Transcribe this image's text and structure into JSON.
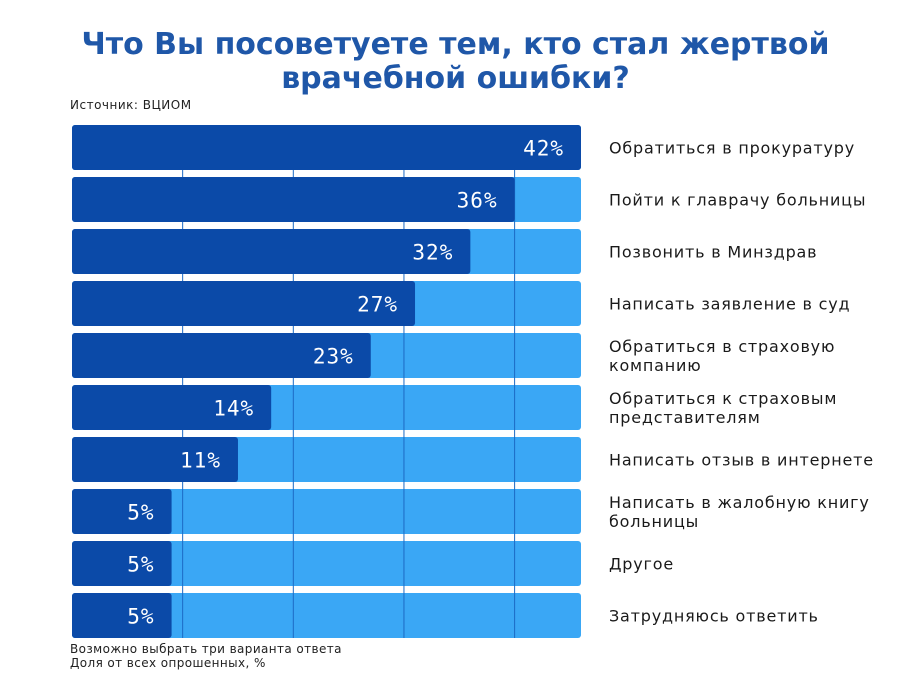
{
  "title_line1": "Что Вы посоветуете тем, кто стал жертвой",
  "title_line2": "врачебной ошибки?",
  "source": "Источник: ВЦИОМ",
  "footnote_line1": "Возможно выбрать три варианта ответа",
  "footnote_line2": "Доля от всех опрошенных, %",
  "colors": {
    "title": "#1f57a8",
    "bar_value": "#0b4aa8",
    "bar_track": "#3aa7f5",
    "gridline": "#1c6ac4",
    "value_text": "#ffffff"
  },
  "chart_data": {
    "type": "bar",
    "orientation": "horizontal",
    "categories": [
      [
        "Обратиться в прокуратуру"
      ],
      [
        "Пойти к главрачу больницы"
      ],
      [
        "Позвонить в Минздрав"
      ],
      [
        "Написать заявление в суд"
      ],
      [
        "Обратиться в страховую",
        "компанию"
      ],
      [
        "Обратиться к страховым",
        "представителям"
      ],
      [
        "Написать отзыв в интернете"
      ],
      [
        "Написать в жалобную книгу",
        "больницы"
      ],
      [
        "Другое"
      ],
      [
        "Затрудняюсь ответить"
      ]
    ],
    "values": [
      42,
      36,
      32,
      27,
      23,
      14,
      11,
      5,
      5,
      5
    ],
    "value_labels": [
      "42%",
      "36%",
      "32%",
      "27%",
      "23%",
      "14%",
      "11%",
      "5%",
      "5%",
      "5%"
    ],
    "xlim": [
      -4,
      42
    ],
    "grid": true
  }
}
